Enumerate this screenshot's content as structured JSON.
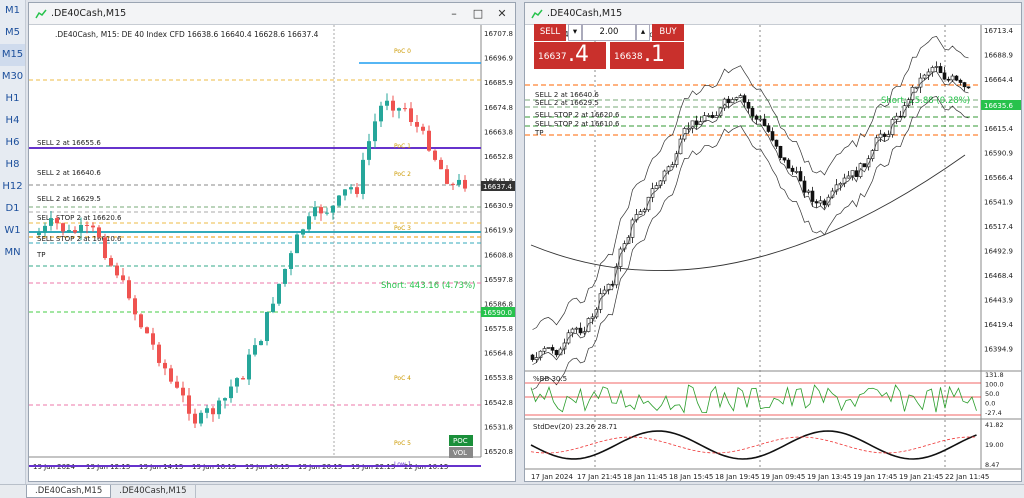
{
  "timeframes": [
    "M1",
    "M5",
    "M15",
    "M30",
    "H1",
    "H4",
    "H6",
    "H8",
    "H12",
    "D1",
    "W1",
    "MN"
  ],
  "active_timeframe": "M15",
  "left_window": {
    "title": ".DE40Cash,M15",
    "info": ".DE40Cash, M15:  DE 40 Index CFD   16638.6 16640.4 16628.6 16637.4",
    "price_labels": [
      "16707.8",
      "16696.9",
      "16685.9",
      "16674.8",
      "16663.8",
      "16652.8",
      "16641.8",
      "16630.9",
      "16619.9",
      "16608.8",
      "16597.8",
      "16586.8",
      "16575.8",
      "16564.8",
      "16553.8",
      "16542.8",
      "16531.8",
      "16520.8"
    ],
    "current_price": "16637.4",
    "short_price": "16590.0",
    "time_labels": [
      "19 Jan 2024",
      "19 Jan 12:15",
      "19 Jan 14:15",
      "19 Jan 16:15",
      "19 Jan 18:15",
      "19 Jan 20:15",
      "19 Jan 22:15",
      "22 Jan 10:15"
    ],
    "orders": [
      "SELL 2 at 16655.6",
      "SELL 2 at 16640.6",
      "SELL 2 at 16629.5",
      "SELL STOP 2 at 16620.6",
      "SELL STOP 2 at 16610.6",
      "TP"
    ],
    "short_text": "Short: 443.16  (4.73%)",
    "poc_labels": [
      "PoC 0",
      "PoC 1",
      "PoC 2",
      "PoC 3",
      "PoC 4",
      "PoC 5",
      "Low 1"
    ],
    "btn_poc": "POC",
    "btn_vol": "VOL"
  },
  "right_window": {
    "title": ".DE40Cash,M15",
    "info": ".DE40Cash, M15:  DE 40 Index CFD",
    "sell_label": "SELL",
    "buy_label": "BUY",
    "lot": "2.00",
    "sell_small": "16637",
    "sell_big": ".4",
    "buy_small": "16638",
    "buy_big": ".1",
    "price_labels": [
      "16713.4",
      "16688.9",
      "16664.4",
      "16640.0",
      "16615.4",
      "16590.9",
      "16566.4",
      "16541.9",
      "16517.4",
      "16492.9",
      "16468.4",
      "16443.9",
      "16419.4",
      "16394.9"
    ],
    "current_price": "16635.6",
    "orders": [
      "SELL 2 at 16640.6",
      "SELL 2 at 16629.5",
      "SELL STOP 2 at 16620.6",
      "SELL STOP 2 at 16610.6",
      "TP"
    ],
    "short_text": "Short: 25.88  (0.28%)",
    "bb_label": "%BB 30.5",
    "bb_scale": [
      "131.8",
      "100.0",
      "50.0",
      "0.0",
      "-27.4"
    ],
    "std_label": "StdDev(20) 23.26 28.71",
    "std_scale": [
      "41.82",
      "19.00",
      "8.47"
    ],
    "time_labels": [
      "17 Jan 2024",
      "17 Jan 21:45",
      "18 Jan 11:45",
      "18 Jan 15:45",
      "18 Jan 19:45",
      "19 Jan 09:45",
      "19 Jan 13:45",
      "19 Jan 17:45",
      "19 Jan 21:45",
      "22 Jan 11:45"
    ]
  },
  "tabs": [
    ".DE40Cash,M15",
    ".DE40Cash,M15"
  ],
  "colors": {
    "up": "#26a69a",
    "down": "#ef5350",
    "accent": "#1c4f9c",
    "sell": "#c9302c",
    "green": "#27c24c"
  }
}
